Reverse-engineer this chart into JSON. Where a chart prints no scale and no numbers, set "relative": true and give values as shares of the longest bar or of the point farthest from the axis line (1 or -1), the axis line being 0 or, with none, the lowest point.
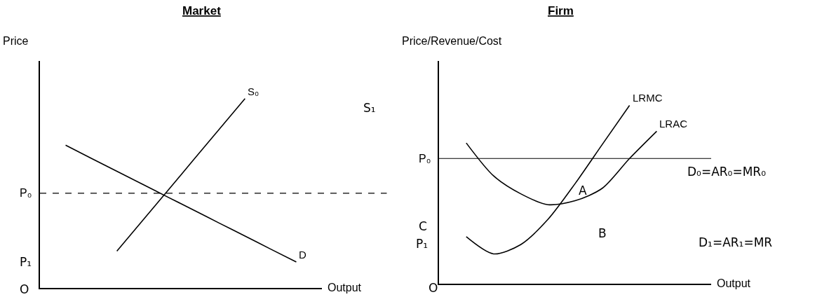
{
  "chart_data": [
    {
      "type": "line",
      "title": "Market",
      "xlabel": "Output",
      "ylabel": "Price",
      "relative": true,
      "marker": "none",
      "categories": [
        null,
        null,
        null,
        null,
        null,
        null,
        null,
        null,
        null,
        null,
        null
      ],
      "series": [
        {
          "name": "S₀",
          "color": "#000000",
          "values": [
            null,
            null,
            null,
            0.194,
            0.355,
            0.516,
            0.678,
            0.839,
            1.0,
            null,
            null
          ]
        },
        {
          "name": "D",
          "color": "#000000",
          "values": [
            null,
            0.754,
            0.685,
            0.616,
            0.548,
            0.479,
            0.411,
            0.342,
            0.274,
            0.205,
            0.137
          ]
        }
      ],
      "ref_lines": [
        {
          "axis": "y",
          "value": 0.5,
          "label": "P₀",
          "color": "#000000",
          "line_style": "dashed"
        }
      ],
      "annotations": [
        "P₁",
        "S₁",
        "O"
      ]
    },
    {
      "type": "line",
      "title": "Firm",
      "xlabel": "Output",
      "ylabel": "Price/Revenue/Cost",
      "relative": true,
      "marker": "none",
      "categories": [
        null,
        null,
        null,
        null,
        null,
        null,
        null,
        null,
        null,
        null
      ],
      "series": [
        {
          "name": "LRMC",
          "color": "#000000",
          "values": [
            null,
            0.263,
            0.167,
            0.219,
            0.36,
            0.561,
            0.781,
            1.0,
            null,
            null
          ]
        },
        {
          "name": "LRAC",
          "color": "#000000",
          "values": [
            null,
            0.789,
            0.605,
            0.504,
            0.443,
            0.465,
            0.535,
            0.702,
            0.855,
            null
          ]
        }
      ],
      "ref_lines": [
        {
          "axis": "y",
          "value": 0.702,
          "label": "P₀",
          "color": "#000000",
          "line_style": "solid"
        }
      ],
      "annotations": [
        "O",
        "P₁",
        "C",
        "A",
        "B",
        "D₁=AR₁=MR",
        "D₀=AR₀=MR₀"
      ]
    }
  ]
}
